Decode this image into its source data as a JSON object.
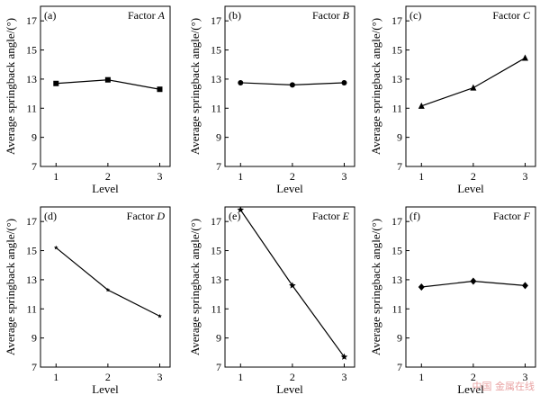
{
  "chart_data": [
    {
      "type": "line",
      "panel": "(a)",
      "factor_prefix": "Factor ",
      "factor": "A",
      "xlabel": "Level",
      "ylabel": "Average springback angle/(°)",
      "x": [
        1,
        2,
        3
      ],
      "values": [
        12.7,
        12.95,
        12.3
      ],
      "yticks": [
        7,
        9,
        11,
        13,
        15,
        17
      ],
      "xticks": [
        1,
        2,
        3
      ],
      "ylim": [
        7,
        18
      ],
      "xlim": [
        0.7,
        3.2
      ],
      "marker": "square"
    },
    {
      "type": "line",
      "panel": "(b)",
      "factor_prefix": "Factor ",
      "factor": "B",
      "xlabel": "Level",
      "ylabel": "Average springback angle/(°)",
      "x": [
        1,
        2,
        3
      ],
      "values": [
        12.75,
        12.6,
        12.75
      ],
      "yticks": [
        7,
        9,
        11,
        13,
        15,
        17
      ],
      "xticks": [
        1,
        2,
        3
      ],
      "ylim": [
        7,
        18
      ],
      "xlim": [
        0.7,
        3.2
      ],
      "marker": "circle"
    },
    {
      "type": "line",
      "panel": "(c)",
      "factor_prefix": "Factor ",
      "factor": "C",
      "xlabel": "Level",
      "ylabel": "Average springback angle/(°)",
      "x": [
        1,
        2,
        3
      ],
      "values": [
        11.15,
        12.4,
        14.45
      ],
      "yticks": [
        7,
        9,
        11,
        13,
        15,
        17
      ],
      "xticks": [
        1,
        2,
        3
      ],
      "ylim": [
        7,
        18
      ],
      "xlim": [
        0.7,
        3.2
      ],
      "marker": "triangle"
    },
    {
      "type": "line",
      "panel": "(d)",
      "factor_prefix": "Factor ",
      "factor": "D",
      "xlabel": "Level",
      "ylabel": "Average springback angle/(°)",
      "x": [
        1,
        2,
        3
      ],
      "values": [
        15.2,
        12.3,
        10.5
      ],
      "yticks": [
        7,
        9,
        11,
        13,
        15,
        17
      ],
      "xticks": [
        1,
        2,
        3
      ],
      "ylim": [
        7,
        18
      ],
      "xlim": [
        0.7,
        3.2
      ],
      "marker": "small-star"
    },
    {
      "type": "line",
      "panel": "(e)",
      "factor_prefix": "Factor ",
      "factor": "E",
      "xlabel": "Level",
      "ylabel": "Average springback angle/(°)",
      "x": [
        1,
        2,
        3
      ],
      "values": [
        17.8,
        12.6,
        7.7
      ],
      "yticks": [
        7,
        9,
        11,
        13,
        15,
        17
      ],
      "xticks": [
        1,
        2,
        3
      ],
      "ylim": [
        7,
        18
      ],
      "xlim": [
        0.7,
        3.2
      ],
      "marker": "star"
    },
    {
      "type": "line",
      "panel": "(f)",
      "factor_prefix": "Factor ",
      "factor": "F",
      "xlabel": "Level",
      "ylabel": "Average springback angle/(°)",
      "x": [
        1,
        2,
        3
      ],
      "values": [
        12.5,
        12.9,
        12.6
      ],
      "yticks": [
        7,
        9,
        11,
        13,
        15,
        17
      ],
      "xticks": [
        1,
        2,
        3
      ],
      "ylim": [
        7,
        18
      ],
      "xlim": [
        0.7,
        3.2
      ],
      "marker": "diamond"
    }
  ],
  "watermark": "中国 金属在线"
}
